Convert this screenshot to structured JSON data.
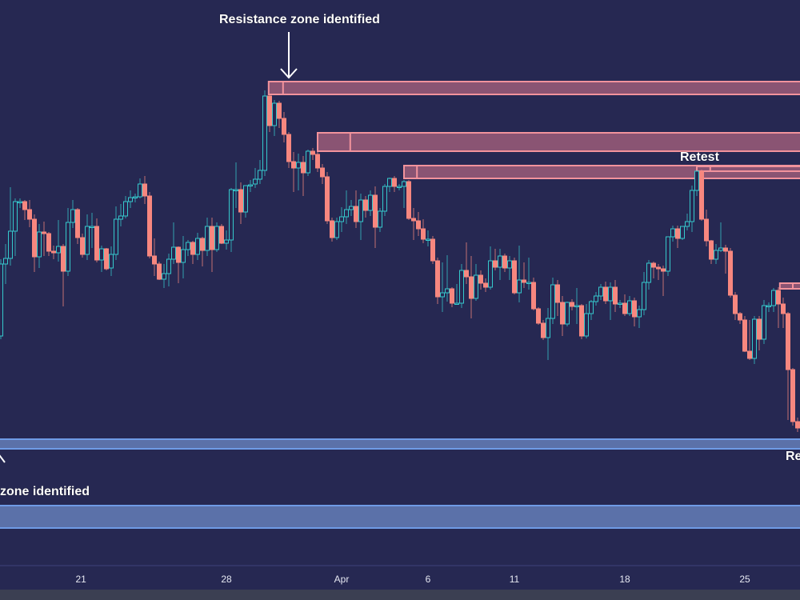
{
  "chart_data": {
    "type": "candlestick",
    "title": "",
    "xlabel": "",
    "ylabel": "",
    "ohlc_order": [
      "open",
      "high",
      "low",
      "close"
    ],
    "candles": [
      [
        280,
        376,
        276,
        370
      ],
      [
        370,
        395,
        345,
        377
      ],
      [
        377,
        466,
        368,
        411
      ],
      [
        411,
        452,
        380,
        448
      ],
      [
        448,
        452,
        440,
        448
      ],
      [
        448,
        450,
        425,
        438
      ],
      [
        438,
        450,
        416,
        426
      ],
      [
        426,
        432,
        360,
        379
      ],
      [
        379,
        420,
        365,
        410
      ],
      [
        410,
        423,
        380,
        408
      ],
      [
        408,
        410,
        380,
        386
      ],
      [
        386,
        393,
        376,
        384
      ],
      [
        384,
        425,
        373,
        392
      ],
      [
        392,
        395,
        317,
        361
      ],
      [
        361,
        440,
        355,
        422
      ],
      [
        422,
        450,
        415,
        438
      ],
      [
        438,
        440,
        395,
        403
      ],
      [
        403,
        408,
        378,
        382
      ],
      [
        382,
        432,
        375,
        417
      ],
      [
        417,
        434,
        390,
        417
      ],
      [
        417,
        427,
        372,
        375
      ],
      [
        375,
        393,
        360,
        389
      ],
      [
        389,
        390,
        362,
        364
      ],
      [
        365,
        392,
        355,
        382
      ],
      [
        382,
        442,
        375,
        426
      ],
      [
        426,
        445,
        417,
        430
      ],
      [
        430,
        455,
        427,
        448
      ],
      [
        448,
        462,
        440,
        453
      ],
      [
        454,
        458,
        447,
        454
      ],
      [
        454,
        477,
        452,
        470
      ],
      [
        470,
        480,
        445,
        455
      ],
      [
        455,
        460,
        377,
        380
      ],
      [
        380,
        402,
        355,
        370
      ],
      [
        370,
        373,
        350,
        351
      ],
      [
        351,
        370,
        340,
        358
      ],
      [
        358,
        383,
        342,
        376
      ],
      [
        376,
        422,
        370,
        391
      ],
      [
        391,
        392,
        346,
        372
      ],
      [
        372,
        405,
        352,
        388
      ],
      [
        388,
        400,
        380,
        397
      ],
      [
        397,
        399,
        370,
        382
      ],
      [
        382,
        409,
        375,
        402
      ],
      [
        402,
        404,
        367,
        387
      ],
      [
        387,
        428,
        380,
        417
      ],
      [
        417,
        428,
        360,
        388
      ],
      [
        388,
        422,
        385,
        417
      ],
      [
        417,
        420,
        395,
        396
      ],
      [
        396,
        412,
        388,
        400
      ],
      [
        400,
        465,
        385,
        463
      ],
      [
        463,
        497,
        440,
        463
      ],
      [
        463,
        472,
        420,
        435
      ],
      [
        435,
        468,
        428,
        468
      ],
      [
        469,
        475,
        460,
        469
      ],
      [
        470,
        490,
        465,
        476
      ],
      [
        476,
        500,
        470,
        487
      ],
      [
        487,
        587,
        480,
        580
      ],
      [
        580,
        582,
        535,
        543
      ],
      [
        543,
        575,
        530,
        571
      ],
      [
        571,
        574,
        540,
        552
      ],
      [
        552,
        560,
        522,
        532
      ],
      [
        532,
        535,
        490,
        498
      ],
      [
        498,
        510,
        460,
        490
      ],
      [
        490,
        508,
        462,
        497
      ],
      [
        497,
        505,
        455,
        484
      ],
      [
        484,
        513,
        480,
        511
      ],
      [
        511,
        515,
        500,
        507
      ],
      [
        507,
        510,
        485,
        490
      ],
      [
        490,
        495,
        470,
        479
      ],
      [
        479,
        485,
        420,
        424
      ],
      [
        424,
        428,
        398,
        403
      ],
      [
        403,
        428,
        400,
        423
      ],
      [
        423,
        441,
        410,
        429
      ],
      [
        429,
        462,
        420,
        438
      ],
      [
        438,
        450,
        430,
        442
      ],
      [
        442,
        462,
        415,
        423
      ],
      [
        423,
        458,
        400,
        450
      ],
      [
        450,
        455,
        428,
        437
      ],
      [
        437,
        462,
        430,
        456
      ],
      [
        456,
        467,
        390,
        416
      ],
      [
        416,
        440,
        410,
        436
      ],
      [
        436,
        470,
        430,
        467
      ],
      [
        467,
        478,
        460,
        477
      ],
      [
        477,
        480,
        460,
        467
      ],
      [
        467,
        470,
        462,
        467
      ],
      [
        467,
        475,
        440,
        473
      ],
      [
        473,
        475,
        425,
        427
      ],
      [
        427,
        440,
        400,
        424
      ],
      [
        424,
        435,
        405,
        414
      ],
      [
        414,
        426,
        396,
        401
      ],
      [
        401,
        412,
        392,
        401
      ],
      [
        401,
        405,
        370,
        374
      ],
      [
        374,
        378,
        320,
        329
      ],
      [
        329,
        372,
        310,
        334
      ],
      [
        334,
        381,
        323,
        339
      ],
      [
        339,
        341,
        316,
        321
      ],
      [
        321,
        345,
        319,
        321
      ],
      [
        321,
        370,
        315,
        362
      ],
      [
        362,
        397,
        345,
        354
      ],
      [
        354,
        380,
        302,
        327
      ],
      [
        327,
        370,
        324,
        356
      ],
      [
        356,
        362,
        338,
        346
      ],
      [
        346,
        352,
        335,
        341
      ],
      [
        341,
        392,
        338,
        374
      ],
      [
        374,
        389,
        362,
        366
      ],
      [
        366,
        389,
        350,
        380
      ],
      [
        380,
        383,
        360,
        365
      ],
      [
        365,
        380,
        350,
        374
      ],
      [
        374,
        378,
        332,
        334
      ],
      [
        334,
        393,
        322,
        350
      ],
      [
        350,
        372,
        340,
        347
      ],
      [
        347,
        378,
        338,
        347
      ],
      [
        347,
        353,
        312,
        314
      ],
      [
        314,
        316,
        294,
        296
      ],
      [
        296,
        300,
        275,
        278
      ],
      [
        278,
        315,
        250,
        302
      ],
      [
        302,
        353,
        295,
        344
      ],
      [
        344,
        350,
        305,
        322
      ],
      [
        322,
        330,
        280,
        295
      ],
      [
        295,
        323,
        292,
        322
      ],
      [
        322,
        326,
        312,
        317
      ],
      [
        318,
        340,
        295,
        318
      ],
      [
        318,
        320,
        276,
        280
      ],
      [
        280,
        320,
        277,
        308
      ],
      [
        308,
        325,
        300,
        323
      ],
      [
        323,
        335,
        318,
        330
      ],
      [
        330,
        345,
        325,
        341
      ],
      [
        341,
        348,
        320,
        324
      ],
      [
        324,
        347,
        300,
        341
      ],
      [
        341,
        350,
        310,
        320
      ],
      [
        321,
        325,
        315,
        321
      ],
      [
        321,
        332,
        305,
        308
      ],
      [
        308,
        330,
        305,
        324
      ],
      [
        324,
        328,
        292,
        304
      ],
      [
        304,
        318,
        290,
        313
      ],
      [
        313,
        360,
        306,
        347
      ],
      [
        347,
        375,
        338,
        371
      ],
      [
        371,
        373,
        352,
        366
      ],
      [
        366,
        370,
        350,
        364
      ],
      [
        364,
        368,
        330,
        361
      ],
      [
        361,
        404,
        355,
        404
      ],
      [
        404,
        418,
        398,
        414
      ],
      [
        414,
        418,
        390,
        402
      ],
      [
        402,
        417,
        400,
        417
      ],
      [
        417,
        433,
        412,
        423
      ],
      [
        423,
        468,
        410,
        462
      ],
      [
        462,
        487,
        455,
        486
      ],
      [
        486,
        488,
        424,
        426
      ],
      [
        426,
        438,
        392,
        399
      ],
      [
        399,
        400,
        370,
        376
      ],
      [
        376,
        395,
        370,
        387
      ],
      [
        387,
        422,
        385,
        390
      ],
      [
        390,
        394,
        358,
        386
      ],
      [
        386,
        390,
        328,
        331
      ],
      [
        331,
        335,
        300,
        308
      ],
      [
        308,
        310,
        295,
        300
      ],
      [
        300,
        305,
        260,
        261
      ],
      [
        261,
        300,
        250,
        252
      ],
      [
        252,
        305,
        245,
        301
      ],
      [
        301,
        305,
        262,
        276
      ],
      [
        276,
        325,
        270,
        318
      ],
      [
        318,
        322,
        310,
        318
      ],
      [
        318,
        340,
        310,
        337
      ],
      [
        337,
        341,
        290,
        320
      ],
      [
        320,
        328,
        290,
        308
      ],
      [
        308,
        310,
        175,
        238
      ],
      [
        238,
        240,
        168,
        173
      ],
      [
        173,
        178,
        160,
        165
      ]
    ],
    "x_ticks": [
      {
        "label": "21",
        "index": 16.7
      },
      {
        "label": "28",
        "index": 47
      },
      {
        "label": "Apr",
        "index": 71
      },
      {
        "label": "6",
        "index": 89
      },
      {
        "label": "11",
        "index": 107
      },
      {
        "label": "18",
        "index": 130
      },
      {
        "label": "25",
        "index": 155
      }
    ],
    "zones": [
      {
        "kind": "resistance",
        "top": 598,
        "bottom": 582,
        "start_index": 55.8,
        "split_index": 58.8
      },
      {
        "kind": "resistance",
        "top": 534,
        "bottom": 511,
        "start_index": 66,
        "split_index": 72.8
      },
      {
        "kind": "resistance",
        "top": 493,
        "bottom": 477,
        "start_index": 84,
        "split_index": 86.7
      },
      {
        "kind": "resistance",
        "top": 492,
        "bottom": 486,
        "start_index": 145,
        "split_index": 147.8
      },
      {
        "kind": "resistance",
        "top": 346,
        "bottom": 339,
        "start_index": 162.3,
        "split_index": 165
      },
      {
        "kind": "support",
        "top": 151,
        "bottom": 139,
        "start_index": -1,
        "split_index": null
      },
      {
        "kind": "support",
        "top": 68,
        "bottom": 40,
        "start_index": -1,
        "split_index": null
      }
    ],
    "annotations": {
      "resistance_label": "Resistance zone identified",
      "retest_label": "Retest",
      "support_label": "zone identified",
      "retest_label_2": "Re"
    },
    "grid": false,
    "legend": "none",
    "colors": {
      "background": "#262852",
      "up": "#35c9cc",
      "down": "#f7877f",
      "resistance_fill": "#8a5473",
      "resistance_border": "#f2939c",
      "support_fill": "#5b71a9",
      "support_border": "#6f9be6"
    }
  }
}
